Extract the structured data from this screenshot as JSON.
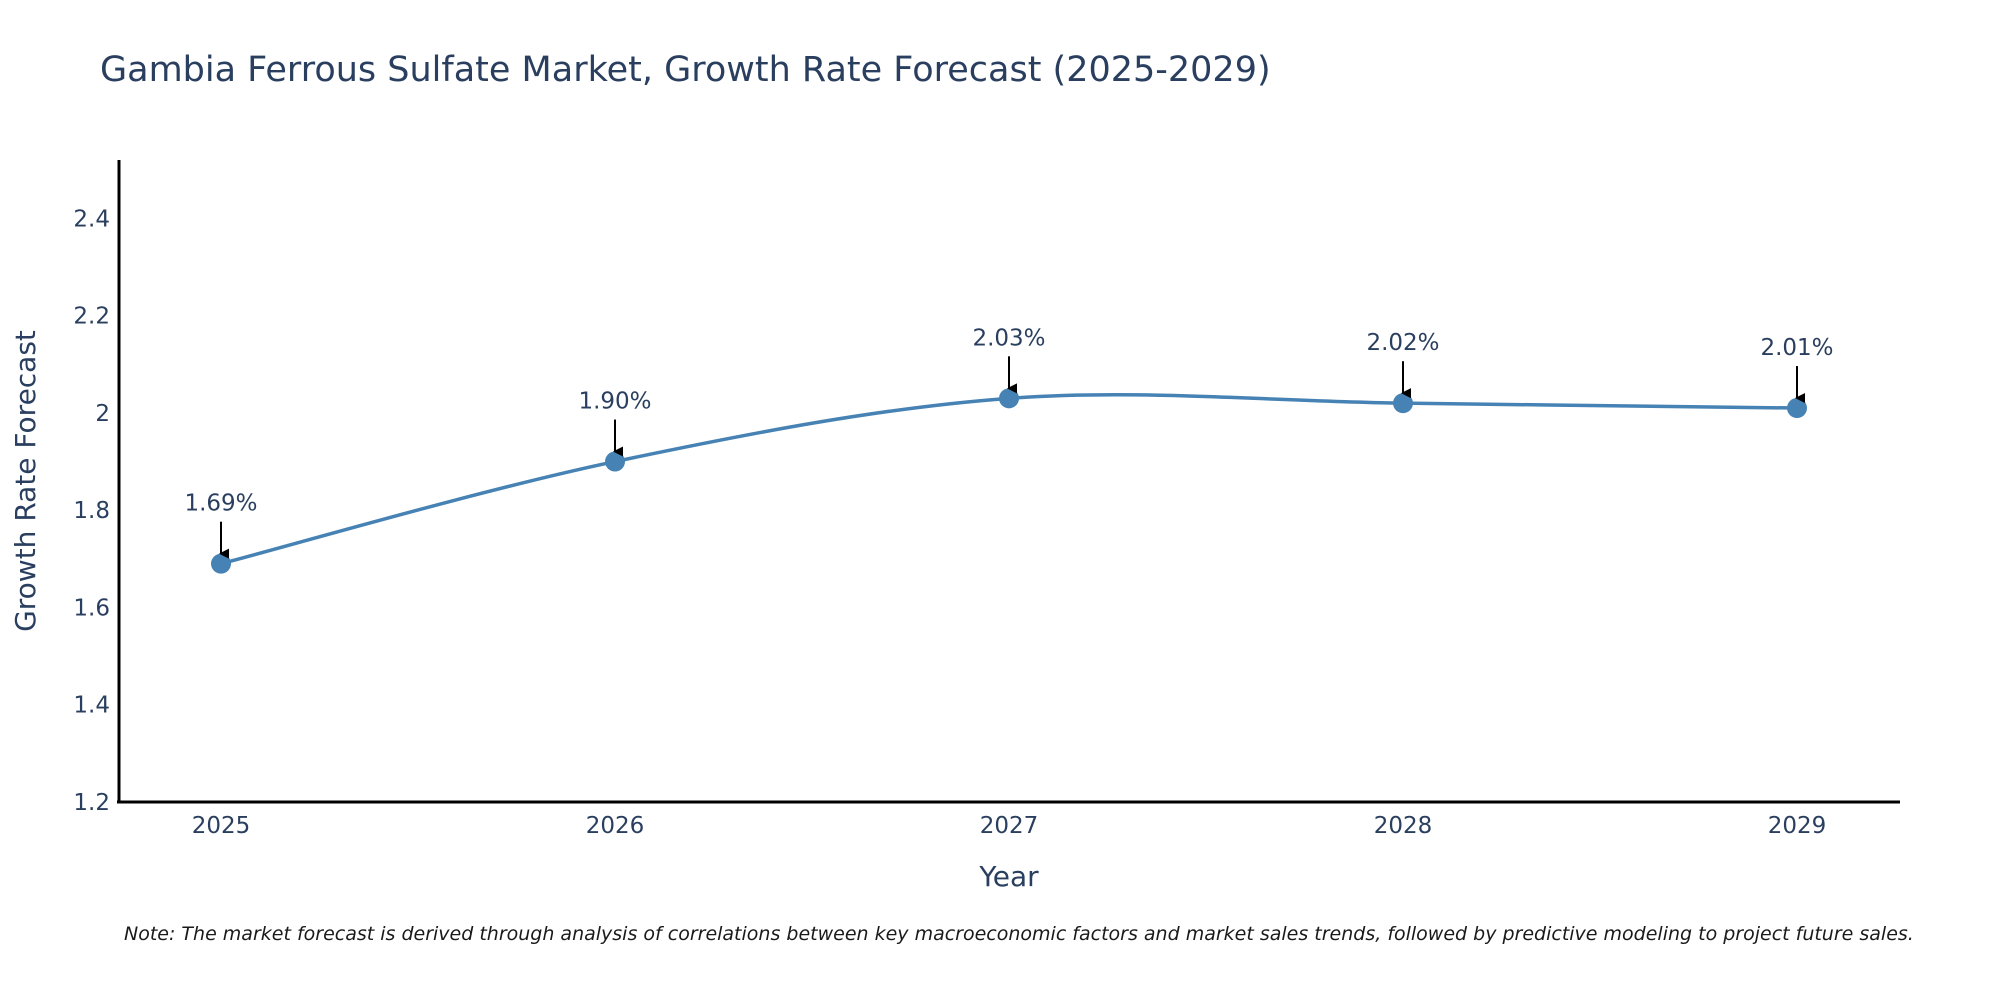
{
  "chart_data": {
    "type": "line",
    "title": "Gambia Ferrous Sulfate Market, Growth Rate Forecast (2025-2029)",
    "xlabel": "Year",
    "ylabel": "Growth Rate Forecast",
    "categories": [
      "2025",
      "2026",
      "2027",
      "2028",
      "2029"
    ],
    "series": [
      {
        "name": "Growth Rate Forecast",
        "values": [
          1.69,
          1.9,
          2.03,
          2.02,
          2.01
        ],
        "labels": [
          "1.69%",
          "1.90%",
          "2.03%",
          "2.02%",
          "2.01%"
        ]
      }
    ],
    "ylim": [
      1.2,
      2.52
    ],
    "yticks": [
      1.2,
      1.4,
      1.6,
      1.8,
      2.0,
      2.2,
      2.4
    ],
    "ytick_labels": [
      "1.2",
      "1.4",
      "1.6",
      "1.8",
      "2",
      "2.2",
      "2.4"
    ],
    "grid": false,
    "legend": "none",
    "line_color": "#4682b4",
    "marker_color": "#4682b4",
    "arrow_color": "#000000",
    "note": "Note: The market forecast is derived through analysis of correlations between key macroeconomic factors and market sales trends, followed by predictive modeling to project future sales."
  }
}
